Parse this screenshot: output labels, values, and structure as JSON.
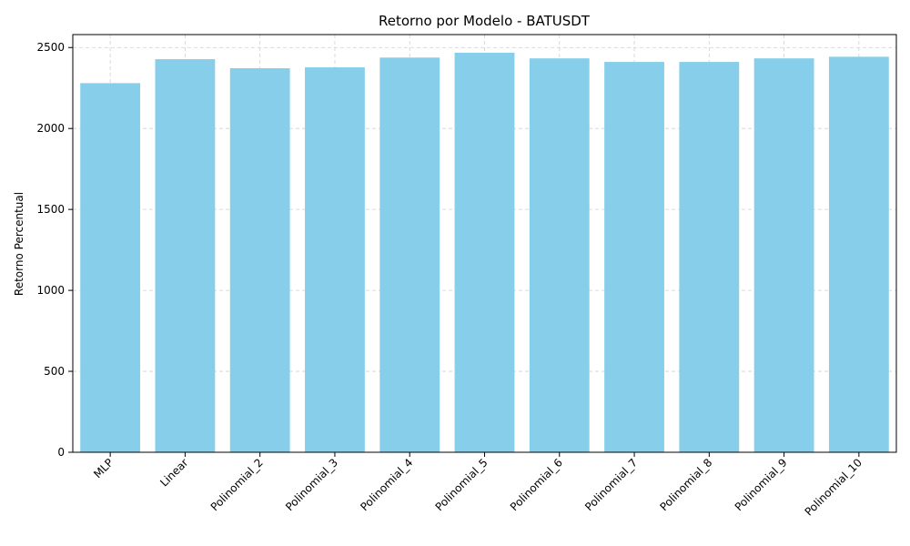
{
  "chart_data": {
    "type": "bar",
    "title": "Retorno por Modelo - BATUSDT",
    "xlabel": "",
    "ylabel": "Retorno Percentual",
    "categories": [
      "MLP",
      "Linear",
      "Polinomial_2",
      "Polinomial_3",
      "Polinomial_4",
      "Polinomial_5",
      "Polinomial_6",
      "Polinomial_7",
      "Polinomial_8",
      "Polinomial_9",
      "Polinomial_10"
    ],
    "values": [
      2280,
      2428,
      2372,
      2378,
      2438,
      2468,
      2433,
      2411,
      2411,
      2433,
      2443
    ],
    "ylim": [
      0,
      2580
    ],
    "yticks": [
      0,
      500,
      1000,
      1500,
      2000,
      2500
    ],
    "grid": true,
    "bar_color": "#87ceeb"
  }
}
